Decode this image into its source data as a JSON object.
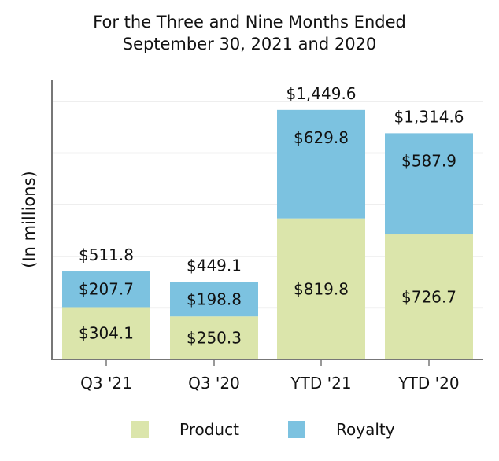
{
  "chart_data": {
    "type": "bar",
    "stacked": true,
    "title": [
      "For the Three and Nine Months Ended",
      "September 30, 2021 and 2020"
    ],
    "xlabel": "",
    "ylabel": "(In millions)",
    "ylim": [
      0,
      1650
    ],
    "grid": true,
    "categories": [
      "Q3 '21",
      "Q3 '20",
      "YTD '21",
      "YTD '20"
    ],
    "series": [
      {
        "name": "Product",
        "color": "#dbe5ab",
        "values": [
          304.1,
          250.3,
          819.8,
          726.7
        ],
        "labels": [
          "$304.1",
          "$250.3",
          "$819.8",
          "$726.7"
        ]
      },
      {
        "name": "Royalty",
        "color": "#7cc2e0",
        "values": [
          207.7,
          198.8,
          629.8,
          587.9
        ],
        "labels": [
          "$207.7",
          "$198.8",
          "$629.8",
          "$587.9"
        ]
      }
    ],
    "totals": [
      511.8,
      449.1,
      1449.6,
      1314.6
    ],
    "total_labels": [
      "$511.8",
      "$449.1",
      "$1,449.6",
      "$1,314.6"
    ],
    "legend": [
      "Product",
      "Royalty"
    ],
    "legend_position": "bottom"
  }
}
